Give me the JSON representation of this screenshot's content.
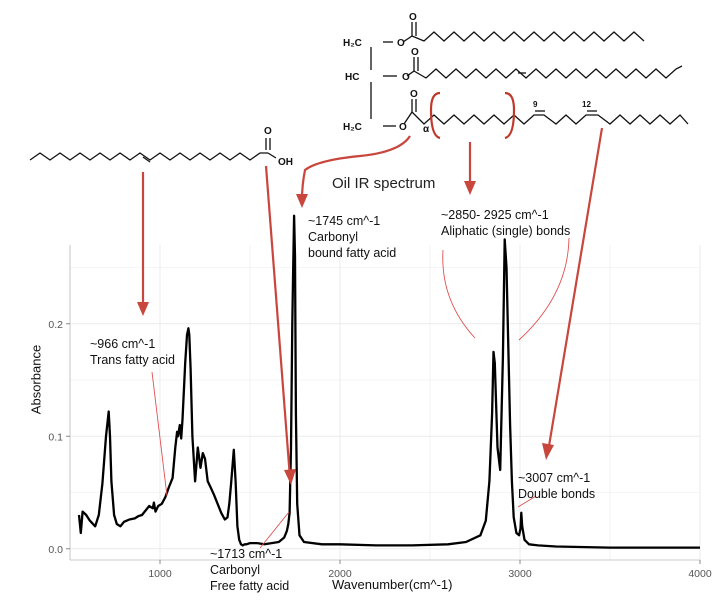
{
  "chart_data": {
    "type": "line",
    "title": "Oil IR spectrum",
    "xlabel": "Wavenumber(cm^-1)",
    "ylabel": "Absorbance",
    "xlim": [
      500,
      4000
    ],
    "ylim": [
      -0.01,
      0.27
    ],
    "grid": true,
    "x_ticks": [
      1000,
      2000,
      3000,
      4000
    ],
    "x_tick_labels": [
      "1000",
      "2000",
      "3000",
      "4000"
    ],
    "y_ticks": [
      0.0,
      0.1,
      0.2
    ],
    "y_tick_labels": [
      "0.0",
      "0.1",
      "0.2"
    ],
    "series": [
      {
        "x": [
          550,
          560,
          570,
          590,
          610,
          640,
          660,
          680,
          700,
          715,
          722,
          730,
          745,
          760,
          780,
          800,
          830,
          860,
          880,
          900,
          920,
          940,
          960,
          966,
          975,
          990,
          1010,
          1030,
          1050,
          1070,
          1085,
          1095,
          1100,
          1110,
          1118,
          1125,
          1140,
          1150,
          1158,
          1163,
          1170,
          1180,
          1195,
          1210,
          1225,
          1238,
          1250,
          1265,
          1280,
          1300,
          1320,
          1340,
          1360,
          1375,
          1385,
          1395,
          1410,
          1420,
          1430,
          1440,
          1450,
          1460,
          1470,
          1480,
          1500,
          1540,
          1580,
          1620,
          1660,
          1690,
          1705,
          1713,
          1720,
          1728,
          1735,
          1740,
          1745,
          1750,
          1755,
          1762,
          1775,
          1800,
          1900,
          2000,
          2200,
          2400,
          2600,
          2700,
          2780,
          2810,
          2830,
          2845,
          2853,
          2860,
          2875,
          2890,
          2905,
          2915,
          2925,
          2935,
          2945,
          2955,
          2965,
          2980,
          2995,
          3003,
          3007,
          3012,
          3025,
          3050,
          3100,
          3200,
          3500,
          4000
        ],
        "y": [
          0.03,
          0.014,
          0.033,
          0.03,
          0.025,
          0.02,
          0.03,
          0.058,
          0.1,
          0.122,
          0.1,
          0.06,
          0.03,
          0.022,
          0.02,
          0.024,
          0.026,
          0.027,
          0.029,
          0.03,
          0.034,
          0.038,
          0.036,
          0.041,
          0.033,
          0.038,
          0.04,
          0.046,
          0.055,
          0.063,
          0.09,
          0.104,
          0.1,
          0.11,
          0.098,
          0.115,
          0.165,
          0.19,
          0.196,
          0.19,
          0.16,
          0.1,
          0.06,
          0.09,
          0.072,
          0.085,
          0.08,
          0.06,
          0.055,
          0.048,
          0.04,
          0.032,
          0.026,
          0.028,
          0.04,
          0.058,
          0.088,
          0.06,
          0.02,
          0.008,
          0.004,
          0.003,
          0.004,
          0.004,
          0.005,
          0.005,
          0.004,
          0.005,
          0.006,
          0.01,
          0.016,
          0.022,
          0.032,
          0.09,
          0.2,
          0.25,
          0.296,
          0.26,
          0.12,
          0.04,
          0.012,
          0.006,
          0.004,
          0.004,
          0.003,
          0.003,
          0.004,
          0.006,
          0.012,
          0.025,
          0.06,
          0.12,
          0.175,
          0.165,
          0.09,
          0.07,
          0.17,
          0.275,
          0.25,
          0.18,
          0.11,
          0.06,
          0.028,
          0.014,
          0.012,
          0.018,
          0.032,
          0.02,
          0.008,
          0.004,
          0.003,
          0.002,
          0.001,
          0.001
        ]
      }
    ],
    "annotations": [
      {
        "lines": [
          "~1745 cm^-1",
          "Carbonyl",
          "bound fatty acid"
        ]
      },
      {
        "lines": [
          "~2850- 2925 cm^-1",
          "Aliphatic (single) bonds"
        ]
      },
      {
        "lines": [
          "~966 cm^-1",
          "Trans fatty acid"
        ]
      },
      {
        "lines": [
          "~3007 cm^-1",
          "Double bonds"
        ]
      },
      {
        "lines": [
          "~1713 cm^-1",
          "Carbonyl",
          "Free fatty acid"
        ]
      }
    ],
    "colors": {
      "spectrum": "#000000",
      "arrows": "#c0392b",
      "guides": "#e05050",
      "grid": "#ebebeb"
    }
  },
  "structures": {
    "triglyceride": {
      "labels": [
        "H₂C",
        "HC",
        "H₂C",
        "O",
        "O",
        "O",
        "O",
        "O",
        "O",
        "α"
      ],
      "position_numbers": [
        "9",
        "12"
      ]
    },
    "fatty_acid": {
      "labels": [
        "O",
        "OH"
      ]
    }
  }
}
